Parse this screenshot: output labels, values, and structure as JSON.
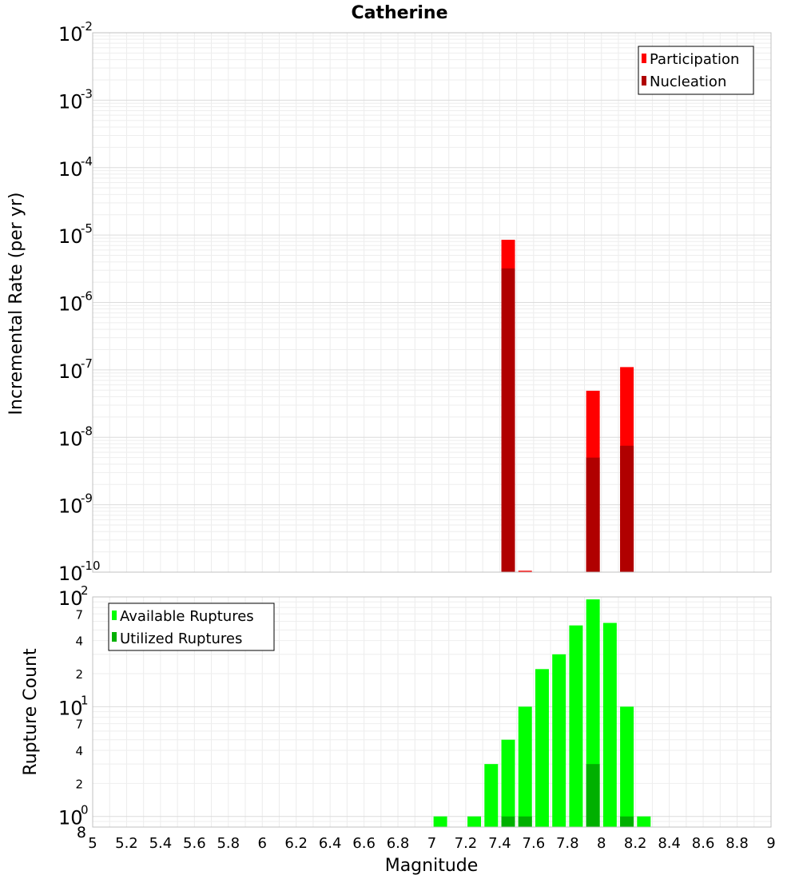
{
  "chart_data": [
    {
      "type": "bar",
      "title": "Catherine",
      "xlabel": "",
      "ylabel": "Incremental Rate (per yr)",
      "yscale": "log",
      "ylim": [
        1e-10,
        0.01
      ],
      "xlim": [
        5,
        9
      ],
      "grid": true,
      "legend_position": "top-right",
      "ytick_labels": [
        {
          "base": "10",
          "exp": "-2"
        },
        {
          "base": "10",
          "exp": "-3"
        },
        {
          "base": "10",
          "exp": "-4"
        },
        {
          "base": "10",
          "exp": "-5"
        },
        {
          "base": "10",
          "exp": "-6"
        },
        {
          "base": "10",
          "exp": "-7"
        },
        {
          "base": "10",
          "exp": "-8"
        },
        {
          "base": "10",
          "exp": "-9"
        },
        {
          "base": "10",
          "exp": "-10"
        }
      ],
      "series": [
        {
          "name": "Participation",
          "color": "#ff0000",
          "x": [
            7.45,
            7.55,
            7.95,
            8.15
          ],
          "values": [
            8.5e-06,
            1.05e-10,
            4.9e-08,
            1.1e-07
          ]
        },
        {
          "name": "Nucleation",
          "color": "#b00000",
          "x": [
            7.45,
            7.95,
            8.15
          ],
          "values": [
            3.2e-06,
            5e-09,
            7.5e-09
          ]
        }
      ]
    },
    {
      "type": "bar",
      "title": "",
      "xlabel": "Magnitude",
      "ylabel": "Rupture Count",
      "yscale": "log",
      "ylim": [
        0.8,
        100
      ],
      "xlim": [
        5,
        9
      ],
      "grid": true,
      "legend_position": "top-left",
      "x_ticks": [
        "5",
        "5.2",
        "5.4",
        "5.6",
        "5.8",
        "6",
        "6.2",
        "6.4",
        "6.6",
        "6.8",
        "7",
        "7.2",
        "7.4",
        "7.6",
        "7.8",
        "8",
        "8.2",
        "8.4",
        "8.6",
        "8.8",
        "9"
      ],
      "major_ytick_labels": [
        {
          "value": 100,
          "base": "10",
          "exp": "2"
        },
        {
          "value": 10,
          "base": "10",
          "exp": "1"
        },
        {
          "value": 1,
          "base": "10",
          "exp": "0"
        }
      ],
      "minor_ytick_labels": [
        {
          "value": 70,
          "label": "7"
        },
        {
          "value": 40,
          "label": "4"
        },
        {
          "value": 20,
          "label": "2"
        },
        {
          "value": 7,
          "label": "7"
        },
        {
          "value": 4,
          "label": "4"
        },
        {
          "value": 2,
          "label": "2"
        },
        {
          "value": 0.8,
          "label": "8"
        }
      ],
      "series": [
        {
          "name": "Available Ruptures",
          "color": "#00ff00",
          "x": [
            7.05,
            7.25,
            7.35,
            7.45,
            7.55,
            7.65,
            7.75,
            7.85,
            7.95,
            8.05,
            8.15,
            8.25
          ],
          "values": [
            1,
            1,
            3,
            5,
            10,
            22,
            30,
            55,
            95,
            58,
            10,
            1
          ]
        },
        {
          "name": "Utilized Ruptures",
          "color": "#00b000",
          "x": [
            7.45,
            7.55,
            7.95,
            8.15
          ],
          "values": [
            1,
            1,
            3,
            1
          ]
        }
      ]
    }
  ]
}
